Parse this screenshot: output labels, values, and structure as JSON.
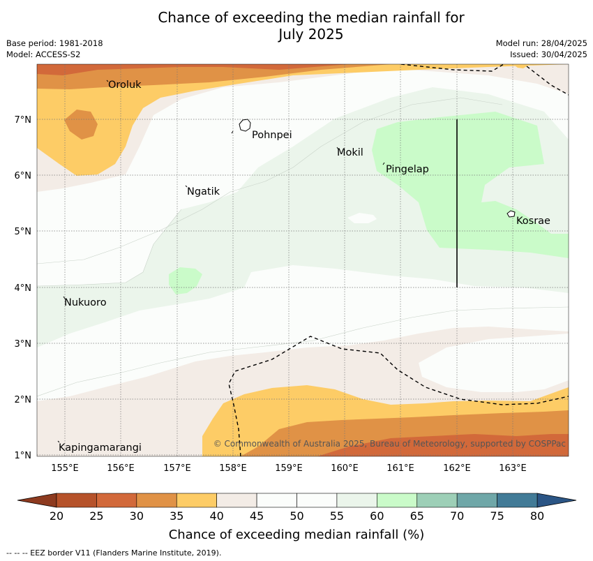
{
  "title_line1": "Chance of exceeding the median rainfall for",
  "title_line2": "July 2025",
  "base_period": "Base period: 1981-2018",
  "model": "Model: ACCESS-S2",
  "model_run": "Model run: 28/04/2025",
  "issued": "Issued: 30/04/2025",
  "copyright": "© Commonwealth of Australia 2025, Bureau of Meteorology, supported by COSPPac",
  "footnote": "--  --  -- EEZ border V11 (Flanders Marine Institute, 2019).",
  "colorbar": {
    "label": "Chance of exceeding median rainfall (%)",
    "ticks": [
      "20",
      "25",
      "30",
      "35",
      "40",
      "45",
      "50",
      "55",
      "60",
      "65",
      "70",
      "75",
      "80"
    ],
    "colors": [
      "#b6522a",
      "#d2693a",
      "#e09246",
      "#fdcc66",
      "#f3ece6",
      "#fbfdfb",
      "#fbfdfb",
      "#ebf5eb",
      "#cafbc9",
      "#9dcfb7",
      "#6fa7a8",
      "#427b97"
    ],
    "low_extend_color": "#8d3a1f",
    "high_extend_color": "#2b5585"
  },
  "axes": {
    "x_ticks": [
      "155°E",
      "156°E",
      "157°E",
      "158°E",
      "159°E",
      "160°E",
      "161°E",
      "162°E",
      "163°E"
    ],
    "y_ticks": [
      "7°N",
      "6°N",
      "5°N",
      "4°N",
      "3°N",
      "2°N",
      "1°N"
    ]
  },
  "places": [
    "Oroluk",
    "Pohnpei",
    "Mokil",
    "Pingelap",
    "Ngatik",
    "Kosrae",
    "Nukuoro",
    "Kapingamarangi"
  ]
}
